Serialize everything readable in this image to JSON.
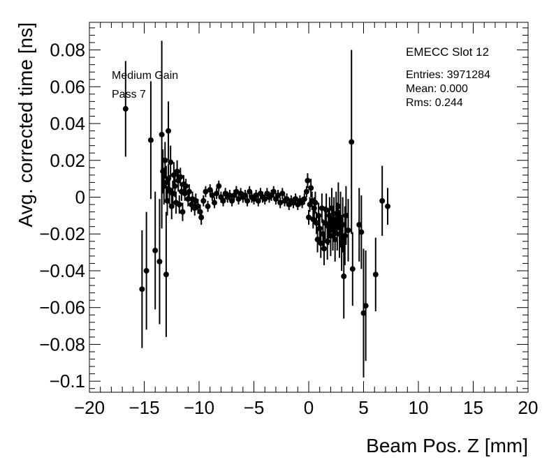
{
  "chart_data": {
    "type": "scatter",
    "xlabel": "Beam Pos. Z [mm]",
    "ylabel": "Avg. corrected time [ns]",
    "xlim": [
      -20,
      20
    ],
    "ylim": [
      -0.106,
      0.095
    ],
    "grid": false,
    "xticks": [
      {
        "value": -20,
        "label": "−20"
      },
      {
        "value": -15,
        "label": "−15"
      },
      {
        "value": -10,
        "label": "−10"
      },
      {
        "value": -5,
        "label": "−5"
      },
      {
        "value": 0,
        "label": "0"
      },
      {
        "value": 5,
        "label": "5"
      },
      {
        "value": 10,
        "label": "10"
      },
      {
        "value": 15,
        "label": "15"
      },
      {
        "value": 20,
        "label": "20"
      }
    ],
    "yticks": [
      {
        "value": 0.08,
        "label": "0.08"
      },
      {
        "value": 0.06,
        "label": "0.06"
      },
      {
        "value": 0.04,
        "label": "0.04"
      },
      {
        "value": 0.02,
        "label": "0.02"
      },
      {
        "value": 0,
        "label": "0"
      },
      {
        "value": -0.02,
        "label": "−0.02"
      },
      {
        "value": -0.04,
        "label": "−0.04"
      },
      {
        "value": -0.06,
        "label": "−0.06"
      },
      {
        "value": -0.08,
        "label": "−0.08"
      },
      {
        "value": -0.1,
        "label": "−0.1"
      }
    ],
    "annotations": {
      "left_line1": "Medium Gain",
      "left_line2": "Pass 7",
      "stats_title": "EMECC Slot 12",
      "entries": "Entries: 3971284",
      "mean": "Mean: 0.000",
      "rms": "Rms: 0.244"
    },
    "series": [
      {
        "marker_color": "#000000",
        "points": [
          {
            "x": -16.7,
            "y": 0.048,
            "err": 0.026
          },
          {
            "x": -15.2,
            "y": -0.05,
            "err": 0.032
          },
          {
            "x": -14.8,
            "y": -0.04,
            "err": 0.032
          },
          {
            "x": -14.4,
            "y": 0.031,
            "err": 0.032
          },
          {
            "x": -14.0,
            "y": -0.029,
            "err": 0.032
          },
          {
            "x": -13.6,
            "y": -0.035,
            "err": 0.034
          },
          {
            "x": -13.4,
            "y": 0.034,
            "err": 0.051
          },
          {
            "x": -13.0,
            "y": -0.042,
            "err": 0.034
          },
          {
            "x": -12.8,
            "y": 0.036,
            "err": 0.016
          },
          {
            "x": -13.3,
            "y": 0.014,
            "err": 0.012
          },
          {
            "x": -13.2,
            "y": 0.006,
            "err": 0.01
          },
          {
            "x": -13.1,
            "y": 0.02,
            "err": 0.01
          },
          {
            "x": -13.0,
            "y": 0.008,
            "err": 0.009
          },
          {
            "x": -12.9,
            "y": -0.002,
            "err": 0.008
          },
          {
            "x": -12.8,
            "y": 0.01,
            "err": 0.008
          },
          {
            "x": -12.7,
            "y": 0.004,
            "err": 0.008
          },
          {
            "x": -12.6,
            "y": 0.019,
            "err": 0.009
          },
          {
            "x": -12.5,
            "y": -0.005,
            "err": 0.007
          },
          {
            "x": -12.4,
            "y": 0.002,
            "err": 0.007
          },
          {
            "x": -12.3,
            "y": 0.012,
            "err": 0.007
          },
          {
            "x": -12.2,
            "y": 0.006,
            "err": 0.006
          },
          {
            "x": -12.1,
            "y": -0.003,
            "err": 0.006
          },
          {
            "x": -12.0,
            "y": 0.014,
            "err": 0.006
          },
          {
            "x": -11.9,
            "y": 0.009,
            "err": 0.006
          },
          {
            "x": -11.8,
            "y": -0.004,
            "err": 0.005
          },
          {
            "x": -11.7,
            "y": 0.011,
            "err": 0.005
          },
          {
            "x": -11.6,
            "y": 0.003,
            "err": 0.005
          },
          {
            "x": -11.5,
            "y": -0.008,
            "err": 0.005
          },
          {
            "x": -11.4,
            "y": 0.007,
            "err": 0.005
          },
          {
            "x": -11.3,
            "y": 0.002,
            "err": 0.004
          },
          {
            "x": -11.2,
            "y": 0.006,
            "err": 0.004
          },
          {
            "x": -11.0,
            "y": -0.001,
            "err": 0.004
          },
          {
            "x": -10.9,
            "y": 0.003,
            "err": 0.004
          },
          {
            "x": -10.7,
            "y": -0.004,
            "err": 0.004
          },
          {
            "x": -10.6,
            "y": -0.001,
            "err": 0.004
          },
          {
            "x": -10.4,
            "y": -0.006,
            "err": 0.004
          },
          {
            "x": -10.3,
            "y": -0.002,
            "err": 0.004
          },
          {
            "x": -10.1,
            "y": -0.005,
            "err": 0.004
          },
          {
            "x": -9.9,
            "y": -0.008,
            "err": 0.004
          },
          {
            "x": -9.8,
            "y": -0.011,
            "err": 0.004
          },
          {
            "x": -9.6,
            "y": -0.002,
            "err": 0.003
          },
          {
            "x": -9.4,
            "y": 0.003,
            "err": 0.003
          },
          {
            "x": -9.2,
            "y": -0.005,
            "err": 0.003
          },
          {
            "x": -9.0,
            "y": 0.004,
            "err": 0.003
          },
          {
            "x": -8.8,
            "y": 0.001,
            "err": 0.003
          },
          {
            "x": -8.6,
            "y": -0.003,
            "err": 0.003
          },
          {
            "x": -8.4,
            "y": 0.002,
            "err": 0.003
          },
          {
            "x": -8.2,
            "y": 0.006,
            "err": 0.003
          },
          {
            "x": -8.0,
            "y": 0.0,
            "err": 0.003
          },
          {
            "x": -7.8,
            "y": -0.002,
            "err": 0.003
          },
          {
            "x": -7.6,
            "y": 0.002,
            "err": 0.003
          },
          {
            "x": -7.4,
            "y": 0.0,
            "err": 0.003
          },
          {
            "x": -7.2,
            "y": 0.001,
            "err": 0.003
          },
          {
            "x": -7.0,
            "y": -0.002,
            "err": 0.003
          },
          {
            "x": -6.8,
            "y": 0.001,
            "err": 0.003
          },
          {
            "x": -6.6,
            "y": 0.003,
            "err": 0.003
          },
          {
            "x": -6.4,
            "y": -0.001,
            "err": 0.003
          },
          {
            "x": -6.2,
            "y": 0.002,
            "err": 0.003
          },
          {
            "x": -6.0,
            "y": 0.0,
            "err": 0.003
          },
          {
            "x": -5.8,
            "y": 0.001,
            "err": 0.003
          },
          {
            "x": -5.6,
            "y": -0.002,
            "err": 0.003
          },
          {
            "x": -5.4,
            "y": 0.003,
            "err": 0.003
          },
          {
            "x": -5.2,
            "y": 0.0,
            "err": 0.003
          },
          {
            "x": -5.0,
            "y": -0.001,
            "err": 0.003
          },
          {
            "x": -4.8,
            "y": 0.001,
            "err": 0.003
          },
          {
            "x": -4.6,
            "y": -0.002,
            "err": 0.003
          },
          {
            "x": -4.4,
            "y": 0.002,
            "err": 0.003
          },
          {
            "x": -4.2,
            "y": 0.0,
            "err": 0.003
          },
          {
            "x": -4.0,
            "y": -0.001,
            "err": 0.003
          },
          {
            "x": -3.8,
            "y": 0.002,
            "err": 0.003
          },
          {
            "x": -3.6,
            "y": 0.0,
            "err": 0.003
          },
          {
            "x": -3.4,
            "y": 0.001,
            "err": 0.003
          },
          {
            "x": -3.2,
            "y": 0.003,
            "err": 0.003
          },
          {
            "x": -3.0,
            "y": -0.001,
            "err": 0.003
          },
          {
            "x": -2.8,
            "y": 0.001,
            "err": 0.003
          },
          {
            "x": -2.6,
            "y": -0.003,
            "err": 0.003
          },
          {
            "x": -2.4,
            "y": 0.002,
            "err": 0.003
          },
          {
            "x": -2.2,
            "y": -0.002,
            "err": 0.003
          },
          {
            "x": -2.0,
            "y": -0.001,
            "err": 0.003
          },
          {
            "x": -1.8,
            "y": -0.004,
            "err": 0.003
          },
          {
            "x": -1.6,
            "y": -0.002,
            "err": 0.003
          },
          {
            "x": -1.4,
            "y": -0.003,
            "err": 0.003
          },
          {
            "x": -1.2,
            "y": -0.001,
            "err": 0.003
          },
          {
            "x": -1.0,
            "y": -0.004,
            "err": 0.003
          },
          {
            "x": -0.8,
            "y": -0.002,
            "err": 0.003
          },
          {
            "x": -0.6,
            "y": -0.003,
            "err": 0.003
          },
          {
            "x": -0.4,
            "y": -0.001,
            "err": 0.003
          },
          {
            "x": -0.2,
            "y": 0.003,
            "err": 0.003
          },
          {
            "x": -0.1,
            "y": 0.009,
            "err": 0.004
          },
          {
            "x": 0.0,
            "y": -0.011,
            "err": 0.004
          },
          {
            "x": 0.1,
            "y": -0.004,
            "err": 0.004
          },
          {
            "x": 0.2,
            "y": 0.005,
            "err": 0.005
          },
          {
            "x": 0.3,
            "y": -0.002,
            "err": 0.005
          },
          {
            "x": 0.4,
            "y": -0.012,
            "err": 0.005
          },
          {
            "x": 0.5,
            "y": -0.006,
            "err": 0.006
          },
          {
            "x": 0.6,
            "y": -0.003,
            "err": 0.006
          },
          {
            "x": 0.7,
            "y": -0.014,
            "err": 0.006
          },
          {
            "x": 0.8,
            "y": -0.023,
            "err": 0.007
          },
          {
            "x": 0.9,
            "y": -0.01,
            "err": 0.007
          },
          {
            "x": 1.0,
            "y": -0.017,
            "err": 0.007
          },
          {
            "x": 1.1,
            "y": -0.025,
            "err": 0.008
          },
          {
            "x": 1.2,
            "y": -0.006,
            "err": 0.008
          },
          {
            "x": 1.3,
            "y": -0.02,
            "err": 0.008
          },
          {
            "x": 1.4,
            "y": -0.028,
            "err": 0.009
          },
          {
            "x": 1.5,
            "y": -0.014,
            "err": 0.009
          },
          {
            "x": 1.6,
            "y": -0.007,
            "err": 0.009
          },
          {
            "x": 1.7,
            "y": -0.024,
            "err": 0.01
          },
          {
            "x": 1.8,
            "y": -0.016,
            "err": 0.01
          },
          {
            "x": 1.9,
            "y": -0.01,
            "err": 0.01
          },
          {
            "x": 2.0,
            "y": -0.021,
            "err": 0.011
          },
          {
            "x": 2.1,
            "y": -0.006,
            "err": 0.011
          },
          {
            "x": 2.2,
            "y": -0.018,
            "err": 0.011
          },
          {
            "x": 2.3,
            "y": -0.012,
            "err": 0.012
          },
          {
            "x": 2.4,
            "y": -0.023,
            "err": 0.012
          },
          {
            "x": 2.5,
            "y": -0.009,
            "err": 0.012
          },
          {
            "x": 2.6,
            "y": -0.016,
            "err": 0.013
          },
          {
            "x": 2.7,
            "y": -0.005,
            "err": 0.013
          },
          {
            "x": 2.8,
            "y": -0.02,
            "err": 0.013
          },
          {
            "x": 2.9,
            "y": -0.011,
            "err": 0.014
          },
          {
            "x": 3.0,
            "y": -0.026,
            "err": 0.014
          },
          {
            "x": 3.1,
            "y": -0.015,
            "err": 0.015
          },
          {
            "x": 3.2,
            "y": -0.043,
            "err": 0.023
          },
          {
            "x": 3.3,
            "y": -0.021,
            "err": 0.016
          },
          {
            "x": 3.4,
            "y": -0.01,
            "err": 0.016
          },
          {
            "x": 3.6,
            "y": -0.018,
            "err": 0.017
          },
          {
            "x": 3.9,
            "y": 0.03,
            "err": 0.05
          },
          {
            "x": 4.0,
            "y": -0.039,
            "err": 0.02
          },
          {
            "x": 4.6,
            "y": -0.015,
            "err": 0.02
          },
          {
            "x": 4.8,
            "y": -0.019,
            "err": 0.02
          },
          {
            "x": 5.0,
            "y": -0.063,
            "err": 0.035
          },
          {
            "x": 5.2,
            "y": -0.059,
            "err": 0.03
          },
          {
            "x": 6.1,
            "y": -0.042,
            "err": 0.02
          },
          {
            "x": 6.7,
            "y": -0.002,
            "err": 0.019
          },
          {
            "x": 7.2,
            "y": -0.005,
            "err": 0.01
          }
        ]
      }
    ]
  }
}
